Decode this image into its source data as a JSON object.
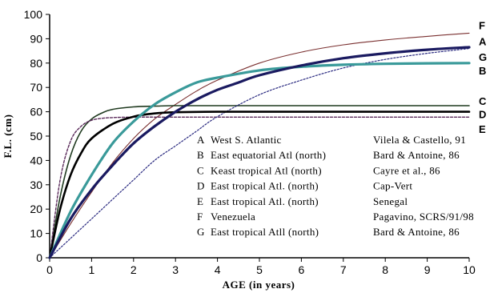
{
  "chart_data": {
    "type": "line",
    "xlabel": "AGE (in years)",
    "ylabel": "F.L. (cm)",
    "xlim": [
      0,
      10
    ],
    "ylim": [
      0,
      100
    ],
    "xticks": [
      "0",
      "1",
      "2",
      "3",
      "4",
      "5",
      "6",
      "7",
      "8",
      "9",
      "10"
    ],
    "yticks": [
      "0",
      "10",
      "20",
      "30",
      "40",
      "50",
      "60",
      "70",
      "80",
      "90",
      "100"
    ],
    "grid": false,
    "series": [
      {
        "name": "A",
        "color": "#1a1a60",
        "style": "solid-thick",
        "x": [
          0,
          0.5,
          1,
          1.5,
          2,
          2.5,
          3,
          3.5,
          4,
          4.5,
          5,
          6,
          7,
          8,
          9,
          10
        ],
        "y": [
          0,
          16,
          28,
          38,
          47,
          54,
          60,
          65,
          69,
          72,
          75,
          79,
          82,
          84,
          85.5,
          86.5
        ]
      },
      {
        "name": "B",
        "color": "#3a9a9a",
        "style": "solid-thick",
        "x": [
          0,
          0.5,
          1,
          1.5,
          2,
          2.5,
          3,
          3.5,
          4,
          5,
          6,
          7,
          8,
          9,
          10
        ],
        "y": [
          0,
          19,
          34,
          47,
          56,
          63,
          68,
          72,
          74,
          77,
          78.5,
          79.3,
          79.7,
          79.9,
          80
        ]
      },
      {
        "name": "C",
        "color": "#1f3a1f",
        "style": "solid",
        "x": [
          0,
          0.25,
          0.5,
          0.75,
          1,
          1.25,
          1.5,
          2,
          2.5,
          3,
          4,
          6,
          8,
          10
        ],
        "y": [
          0,
          25,
          42,
          52,
          57,
          59.5,
          61,
          62,
          62.3,
          62.5,
          62.5,
          62.5,
          62.5,
          62.5
        ]
      },
      {
        "name": "D",
        "color": "#000000",
        "style": "solid-bold",
        "x": [
          0,
          0.25,
          0.5,
          0.75,
          1,
          1.5,
          2,
          2.5,
          3,
          4,
          6,
          8,
          10
        ],
        "y": [
          0,
          20,
          34,
          43,
          49,
          55,
          58,
          59.3,
          59.8,
          60,
          60,
          60,
          60
        ]
      },
      {
        "name": "E",
        "color": "#5a2a5a",
        "style": "dashed",
        "x": [
          0,
          0.25,
          0.5,
          0.75,
          1,
          1.25,
          1.5,
          2,
          3,
          4,
          6,
          8,
          10
        ],
        "y": [
          0,
          32,
          48,
          54,
          56.5,
          57.3,
          57.6,
          57.8,
          57.8,
          57.8,
          57.8,
          57.8,
          57.8
        ]
      },
      {
        "name": "F",
        "color": "#7a3030",
        "style": "solid-thin",
        "x": [
          0,
          0.5,
          1,
          1.5,
          2,
          2.5,
          3,
          3.5,
          4,
          5,
          6,
          7,
          8,
          9,
          10
        ],
        "y": [
          0,
          14,
          27,
          39,
          49,
          57,
          63,
          68.5,
          73,
          80,
          84.5,
          87.5,
          89.5,
          91,
          92.3
        ]
      },
      {
        "name": "G",
        "color": "#2a2a80",
        "style": "dashed-thin",
        "x": [
          0,
          0.5,
          1,
          1.5,
          2,
          2.5,
          3,
          3.5,
          4,
          5,
          6,
          7,
          8,
          9,
          10
        ],
        "y": [
          0,
          8,
          16,
          24,
          32,
          40,
          46,
          52,
          58,
          67,
          73,
          78,
          81.5,
          84,
          86
        ]
      }
    ],
    "end_labels": [
      {
        "text": "F",
        "y": 95.5
      },
      {
        "text": "A",
        "y": 89
      },
      {
        "text": "G",
        "y": 82.5
      },
      {
        "text": "B",
        "y": 77
      },
      {
        "text": "C",
        "y": 64.5
      },
      {
        "text": "D",
        "y": 59
      },
      {
        "text": "E",
        "y": 53
      }
    ],
    "legend": {
      "placement": "center-right",
      "entries": [
        {
          "letter": "A",
          "region": "West S. Atlantic",
          "source": "Vilela & Castello, 91"
        },
        {
          "letter": "B",
          "region": "East equatorial Atl (north)",
          "source": "Bard & Antoine, 86"
        },
        {
          "letter": "C",
          "region": "Keast tropical Atl (north)",
          "source": "Cayre et al., 86"
        },
        {
          "letter": "D",
          "region": "East tropical Atl. (north)",
          "source": "Cap-Vert"
        },
        {
          "letter": "E",
          "region": "East tropical Atl. (north)",
          "source": "Senegal"
        },
        {
          "letter": "F",
          "region": "Venezuela",
          "source": "Pagavino, SCRS/91/98"
        },
        {
          "letter": "G",
          "region": "East tropical Atll (north)",
          "source": "Bard & Antoine, 86"
        }
      ]
    }
  }
}
